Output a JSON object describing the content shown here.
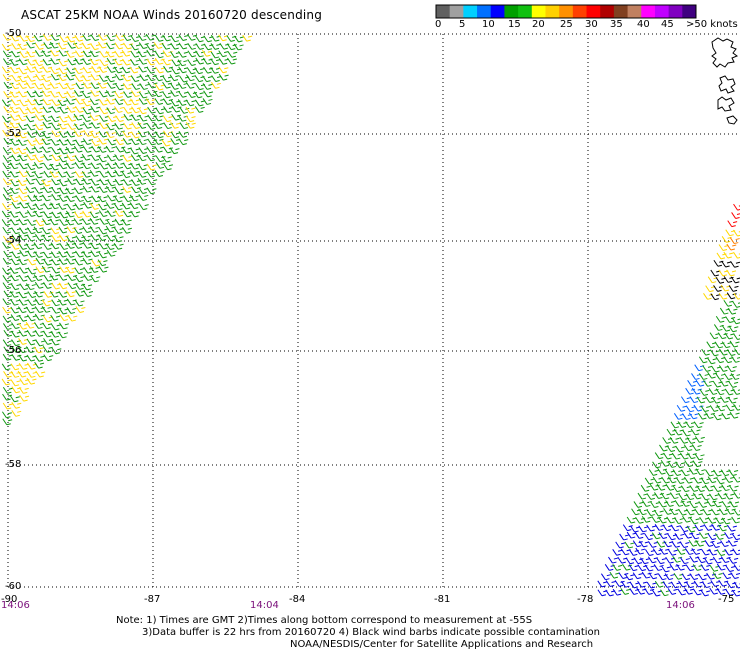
{
  "title": "ASCAT 25KM NOAA Winds 20160720 descending",
  "legend": {
    "colors": [
      "#606060",
      "#a0a0a0",
      "#00d0ff",
      "#0070ff",
      "#0000ff",
      "#00a000",
      "#10c010",
      "#ffff00",
      "#ffd000",
      "#ff9000",
      "#ff4000",
      "#ff0000",
      "#b00000",
      "#804020",
      "#c08060",
      "#ff00ff",
      "#c000ff",
      "#8000c0",
      "#400080"
    ],
    "labels": [
      "0",
      "5",
      "10",
      "15",
      "20",
      "25",
      "30",
      "35",
      "40",
      "45",
      ">50 knots"
    ]
  },
  "lat_labels": [
    "-50",
    "-52",
    "-54",
    "-56",
    "-58",
    "-60"
  ],
  "lon_labels": [
    "-90",
    "-87",
    "-84",
    "-81",
    "-78",
    "-75"
  ],
  "time_labels": [
    "14:06",
    "14:04",
    "14:06"
  ],
  "notes": {
    "line1": "Note: 1) Times are GMT 2)Times along bottom correspond to measurement at -55S",
    "line2": "3)Data buffer is 22 hrs from 20160720 4) Black wind barbs indicate possible contamination",
    "line3": "NOAA/NESDIS/Center for Satellite Applications and Research"
  },
  "wind_colors": {
    "yellow": "#ffd800",
    "green": "#109810",
    "blue": "#0000e0",
    "light_blue": "#0060ff",
    "red": "#ff0000",
    "orange": "#ff8000",
    "black": "#000000"
  }
}
